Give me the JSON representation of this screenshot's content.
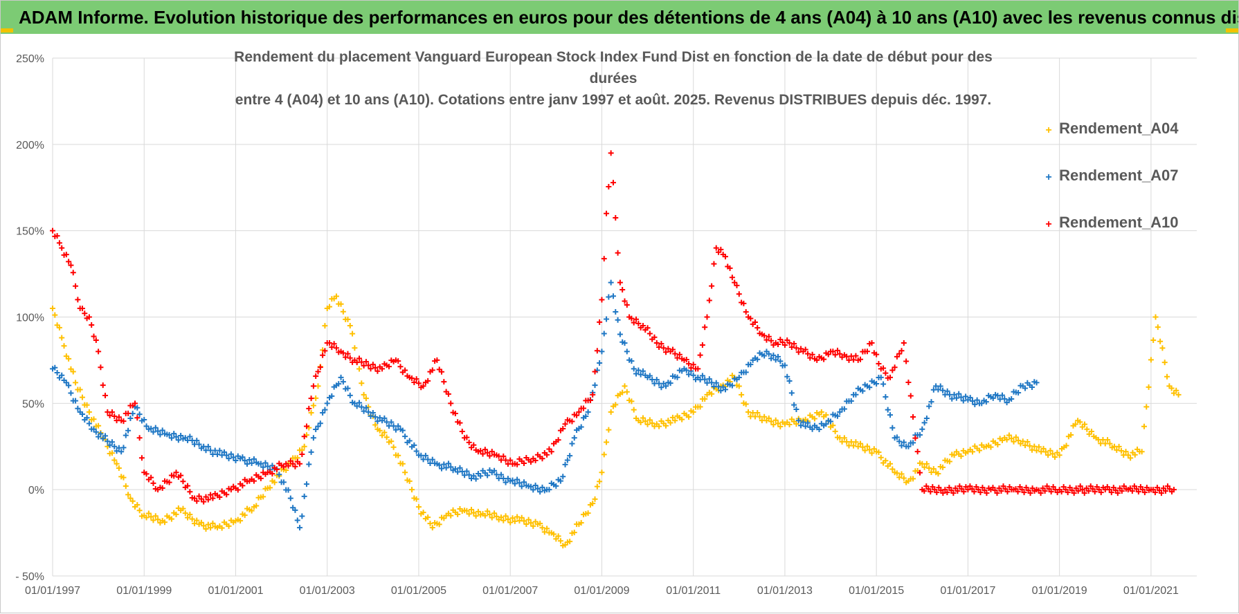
{
  "header": {
    "title": "ADAM Informe. Evolution historique des performances en euros pour des détentions de 4 ans (A04) à 10 ans (A10) avec les revenus connus distribués"
  },
  "colors": {
    "banner": "#7ccb74",
    "A04": "#ffc000",
    "A07": "#1f77c4",
    "A10": "#ff0000",
    "grid": "#d9d9d9",
    "text": "#595959"
  },
  "chart_data": {
    "type": "scatter",
    "title_lines": [
      "Rendement du placement Vanguard European Stock Index Fund Dist en fonction de la date de début pour des durées",
      "entre 4 (A04) et 10 ans (A10). Cotations entre janv 1997 et août. 2025. Revenus DISTRIBUES depuis déc. 1997."
    ],
    "xlabel": "",
    "ylabel": "",
    "x_tick_labels": [
      "01/01/1997",
      "01/01/1999",
      "01/01/2001",
      "01/01/2003",
      "01/01/2005",
      "01/01/2007",
      "01/01/2009",
      "01/01/2011",
      "01/01/2013",
      "01/01/2015",
      "01/01/2017",
      "01/01/2019",
      "01/01/2021"
    ],
    "y_tick_labels": [
      "250%",
      "200%",
      "150%",
      "100%",
      "50%",
      "0%",
      "- 50%"
    ],
    "ylim": [
      -50,
      250
    ],
    "xlim": [
      1997.0,
      2022.0
    ],
    "grid": true,
    "legend_position": "right",
    "legend": [
      "Rendement_A04",
      "Rendement_A07",
      "Rendement_A10"
    ],
    "series": [
      {
        "name": "Rendement_A04",
        "color": "#ffc000",
        "x": [
          1997.0,
          1997.2,
          1997.5,
          1997.8,
          1998.1,
          1998.4,
          1998.7,
          1999.0,
          1999.4,
          1999.8,
          2000.2,
          2000.6,
          2001.0,
          2001.4,
          2001.8,
          2002.2,
          2002.5,
          2002.8,
          2003.0,
          2003.2,
          2003.5,
          2003.8,
          2004.1,
          2004.4,
          2004.7,
          2005.0,
          2005.3,
          2005.6,
          2006.0,
          2006.4,
          2006.8,
          2007.2,
          2007.6,
          2007.9,
          2008.2,
          2008.5,
          2008.8,
          2009.0,
          2009.2,
          2009.5,
          2009.8,
          2010.2,
          2010.6,
          2011.0,
          2011.3,
          2011.6,
          2011.9,
          2012.2,
          2012.6,
          2013.0,
          2013.4,
          2013.8,
          2014.2,
          2014.6,
          2015.0,
          2015.4,
          2015.7,
          2016.0,
          2016.3,
          2016.7,
          2017.0,
          2017.4,
          2017.8,
          2018.2,
          2018.6,
          2019.0,
          2019.4,
          2019.8,
          2020.2,
          2020.5,
          2020.8,
          2021.1,
          2021.4,
          2021.6
        ],
        "values": [
          105,
          88,
          62,
          45,
          30,
          15,
          -5,
          -15,
          -18,
          -12,
          -20,
          -22,
          -18,
          -10,
          5,
          15,
          25,
          60,
          105,
          112,
          95,
          55,
          35,
          28,
          10,
          -10,
          -22,
          -15,
          -12,
          -14,
          -16,
          -18,
          -20,
          -25,
          -32,
          -20,
          -8,
          10,
          45,
          60,
          40,
          38,
          40,
          45,
          55,
          60,
          65,
          45,
          40,
          38,
          40,
          45,
          30,
          25,
          22,
          10,
          5,
          15,
          10,
          20,
          22,
          25,
          30,
          28,
          22,
          20,
          40,
          30,
          25,
          20,
          22,
          100,
          60,
          55
        ]
      },
      {
        "name": "Rendement_A07",
        "color": "#1f77c4",
        "x": [
          1997.0,
          1997.3,
          1997.6,
          1997.9,
          1998.2,
          1998.5,
          1998.8,
          1999.1,
          1999.5,
          1999.9,
          2000.3,
          2000.7,
          2001.1,
          2001.5,
          2001.9,
          2002.2,
          2002.4,
          2002.7,
          2003.0,
          2003.3,
          2003.6,
          2003.9,
          2004.2,
          2004.6,
          2005.0,
          2005.4,
          2005.8,
          2006.2,
          2006.6,
          2007.0,
          2007.4,
          2007.8,
          2008.1,
          2008.4,
          2008.7,
          2009.0,
          2009.2,
          2009.4,
          2009.7,
          2010.0,
          2010.4,
          2010.8,
          2011.1,
          2011.4,
          2011.7,
          2012.0,
          2012.3,
          2012.6,
          2013.0,
          2013.3,
          2013.6,
          2013.9,
          2014.2,
          2014.5,
          2014.8,
          2015.1,
          2015.4,
          2015.7,
          2016.0,
          2016.3,
          2016.6,
          2017.0,
          2017.3,
          2017.6,
          2017.9,
          2018.2,
          2018.5
        ],
        "values": [
          70,
          62,
          45,
          35,
          28,
          22,
          48,
          35,
          32,
          30,
          25,
          20,
          18,
          15,
          12,
          -5,
          -22,
          30,
          50,
          65,
          50,
          45,
          40,
          35,
          20,
          15,
          12,
          8,
          10,
          5,
          2,
          0,
          5,
          30,
          45,
          80,
          120,
          90,
          70,
          65,
          60,
          70,
          65,
          62,
          58,
          65,
          75,
          80,
          72,
          40,
          35,
          38,
          45,
          55,
          60,
          65,
          30,
          25,
          35,
          60,
          55,
          52,
          50,
          55,
          52,
          60,
          62
        ]
      },
      {
        "name": "Rendement_A10",
        "color": "#ff0000",
        "x": [
          1997.0,
          1997.2,
          1997.4,
          1997.6,
          1997.8,
          1998.0,
          1998.2,
          1998.5,
          1998.8,
          1999.0,
          1999.3,
          1999.7,
          2000.1,
          2000.5,
          2000.9,
          2001.3,
          2001.7,
          2002.1,
          2002.4,
          2002.7,
          2003.0,
          2003.3,
          2003.6,
          2003.9,
          2004.2,
          2004.5,
          2004.8,
          2005.1,
          2005.4,
          2005.7,
          2006.0,
          2006.3,
          2006.7,
          2007.1,
          2007.5,
          2007.9,
          2008.2,
          2008.5,
          2008.8,
          2009.0,
          2009.1,
          2009.2,
          2009.4,
          2009.6,
          2009.9,
          2010.2,
          2010.5,
          2010.8,
          2011.1,
          2011.3,
          2011.5,
          2011.7,
          2011.9,
          2012.2,
          2012.5,
          2012.8,
          2013.1,
          2013.4,
          2013.7,
          2014.0,
          2014.3,
          2014.6,
          2014.9,
          2015.1,
          2015.3,
          2015.6,
          2016.0,
          2016.5,
          2017.0,
          2017.5,
          2018.0,
          2018.5,
          2019.0,
          2019.5,
          2020.0,
          2020.5,
          2021.0,
          2021.5
        ],
        "values": [
          150,
          140,
          130,
          105,
          100,
          80,
          45,
          40,
          50,
          10,
          0,
          10,
          -5,
          -5,
          0,
          5,
          10,
          15,
          15,
          60,
          85,
          80,
          75,
          72,
          70,
          75,
          65,
          60,
          75,
          50,
          30,
          22,
          20,
          15,
          18,
          22,
          38,
          45,
          55,
          110,
          160,
          195,
          120,
          100,
          95,
          85,
          80,
          75,
          70,
          100,
          140,
          135,
          120,
          100,
          90,
          85,
          85,
          80,
          75,
          80,
          78,
          75,
          85,
          70,
          65,
          85,
          0,
          0,
          0,
          0,
          0,
          0,
          0,
          0,
          0,
          0,
          0,
          0
        ]
      }
    ]
  }
}
